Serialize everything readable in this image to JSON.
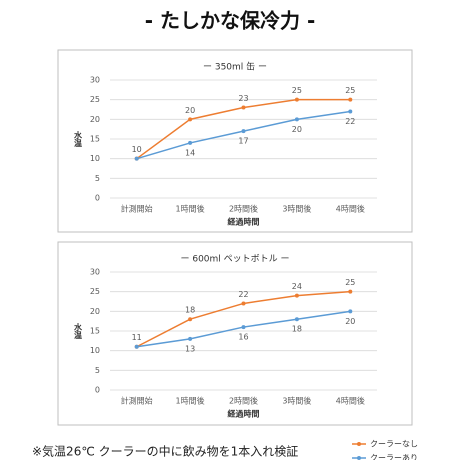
{
  "page_title": "- たしかな保冷力 -",
  "chart_data": [
    {
      "type": "line",
      "title": "ー 350ml 缶 ー",
      "y_label": "水温",
      "x_label": "経過時間",
      "categories": [
        "計測開始",
        "1時間後",
        "2時間後",
        "3時間後",
        "4時間後"
      ],
      "series": [
        {
          "name": "クーラーなし",
          "color": "#ed7d31",
          "values": [
            10,
            20,
            23,
            25,
            25
          ]
        },
        {
          "name": "クーラーあり",
          "color": "#5b9bd5",
          "values": [
            10,
            14,
            17,
            20,
            22
          ]
        }
      ],
      "ylim": [
        0,
        30
      ],
      "yticks": [
        0,
        5,
        10,
        15,
        20,
        25,
        30
      ],
      "grid": true
    },
    {
      "type": "line",
      "title": "ー 600ml ペットボトル ー",
      "y_label": "水温",
      "x_label": "経過時間",
      "categories": [
        "計測開始",
        "1時間後",
        "2時間後",
        "3時間後",
        "4時間後"
      ],
      "series": [
        {
          "name": "クーラーなし",
          "color": "#ed7d31",
          "values": [
            11,
            18,
            22,
            24,
            25
          ]
        },
        {
          "name": "クーラーあり",
          "color": "#5b9bd5",
          "values": [
            11,
            13,
            16,
            18,
            20
          ]
        }
      ],
      "ylim": [
        0,
        30
      ],
      "yticks": [
        0,
        5,
        10,
        15,
        20,
        25,
        30
      ],
      "grid": true
    }
  ],
  "note": "※気温26℃ クーラーの中に飲み物を1本入れ検証"
}
